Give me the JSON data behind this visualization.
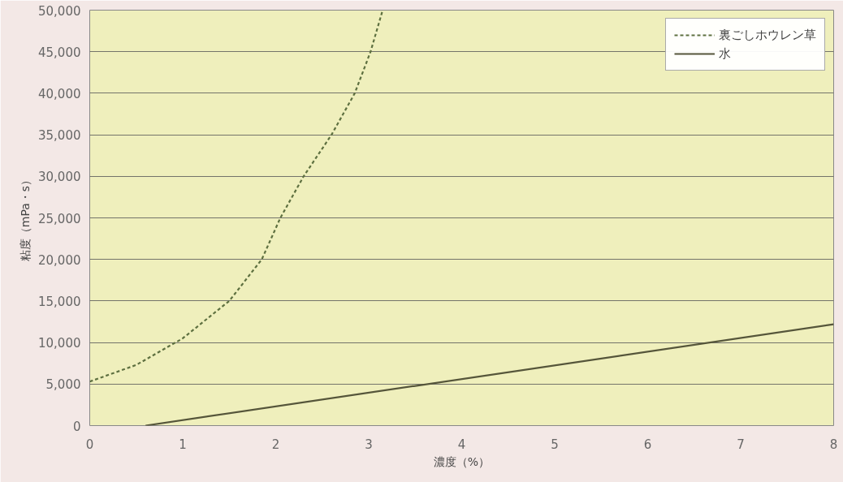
{
  "chart_data": {
    "type": "line",
    "xlabel": "濃度（%）",
    "ylabel": "粘度（mPa・s）",
    "xlim": [
      0,
      8
    ],
    "ylim": [
      0,
      50000
    ],
    "xticks": [
      0,
      1,
      2,
      3,
      4,
      5,
      6,
      7,
      8
    ],
    "yticks": [
      {
        "value": 0,
        "label": "0"
      },
      {
        "value": 5000,
        "label": "5,000"
      },
      {
        "value": 10000,
        "label": "10,000"
      },
      {
        "value": 15000,
        "label": "15,000"
      },
      {
        "value": 20000,
        "label": "20,000"
      },
      {
        "value": 25000,
        "label": "25,000"
      },
      {
        "value": 30000,
        "label": "30,000"
      },
      {
        "value": 35000,
        "label": "35,000"
      },
      {
        "value": 40000,
        "label": "40,000"
      },
      {
        "value": 45000,
        "label": "45,000"
      },
      {
        "value": 50000,
        "label": "50,000"
      }
    ],
    "grid": "y",
    "legend": "top right",
    "series": [
      {
        "name": "裏ごしホウレン草",
        "color": "#5e7040",
        "line_style": "dashed",
        "x": [
          0,
          0.5,
          1,
          1.5,
          1.85,
          2.05,
          2.3,
          2.6,
          2.85,
          3.02,
          3.15
        ],
        "values": [
          5300,
          7300,
          10500,
          15000,
          20000,
          25000,
          30000,
          35000,
          40000,
          45000,
          50000
        ]
      },
      {
        "name": "水",
        "color": "#55553a",
        "line_style": "solid",
        "x": [
          0.6,
          8
        ],
        "values": [
          0,
          12200
        ]
      }
    ]
  }
}
